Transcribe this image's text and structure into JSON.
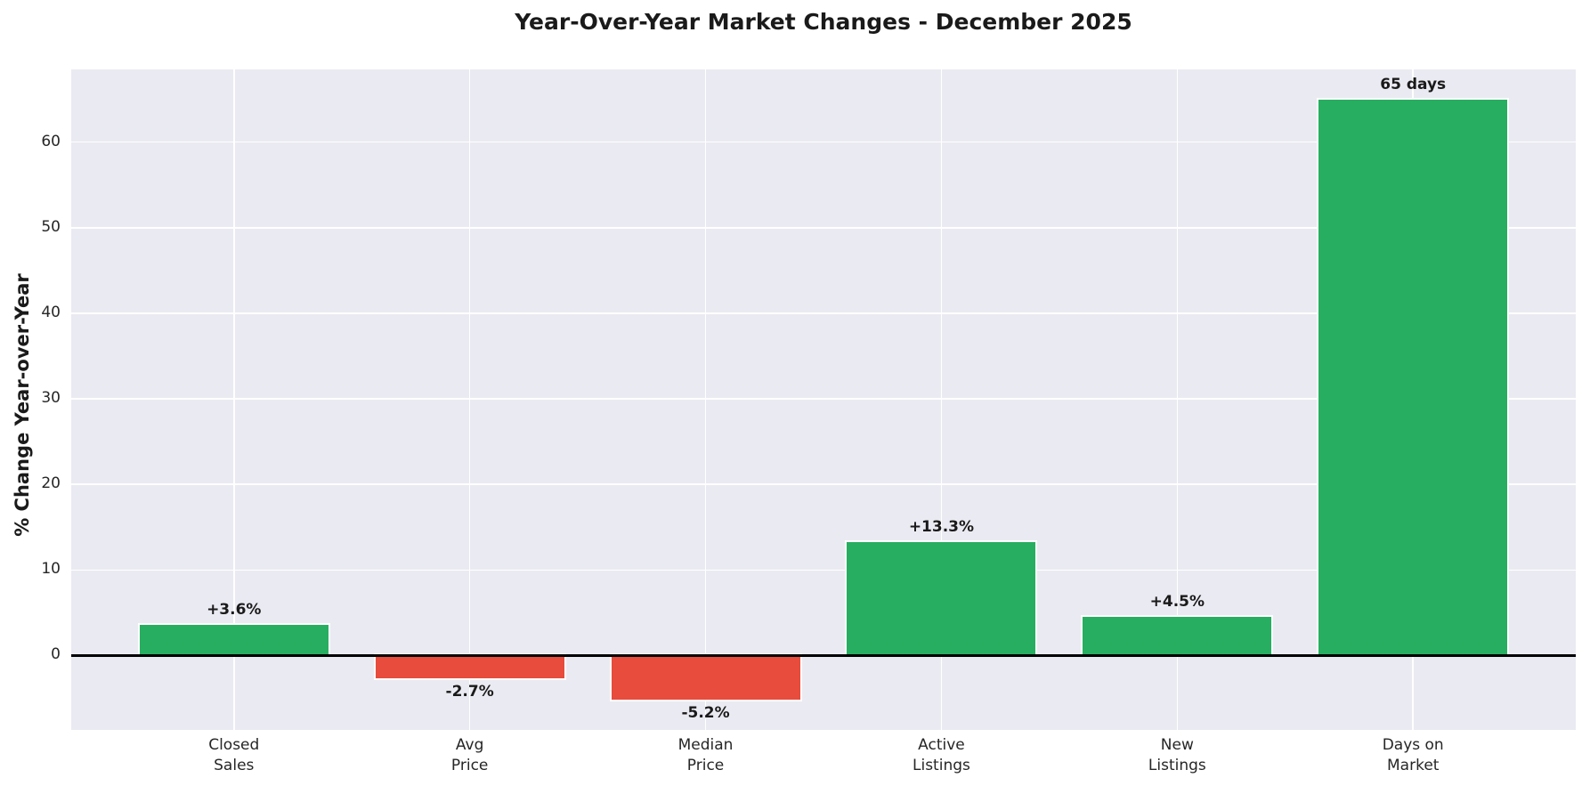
{
  "chart_data": {
    "type": "bar",
    "title": "Year-Over-Year Market Changes - December 2025",
    "ylabel": "% Change Year-over-Year",
    "xlabel": "",
    "categories": [
      "Closed\nSales",
      "Avg\nPrice",
      "Median\nPrice",
      "Active\nListings",
      "New\nListings",
      "Days on\nMarket"
    ],
    "values": [
      3.6,
      -2.7,
      -5.2,
      13.3,
      4.5,
      65
    ],
    "bar_labels": [
      "+3.6%",
      "-2.7%",
      "-5.2%",
      "+13.3%",
      "+4.5%",
      "65 days"
    ],
    "bar_colors": [
      "#27ae60",
      "#e74c3c",
      "#e74c3c",
      "#27ae60",
      "#27ae60",
      "#27ae60"
    ],
    "positive_color": "#27ae60",
    "negative_color": "#e74c3c",
    "bar_edge_color": "#ffffff",
    "bar_width_units": 0.8,
    "yticks": [
      0,
      10,
      20,
      30,
      40,
      50,
      60
    ],
    "ylim": [
      -8.7,
      68.5
    ],
    "xlim": [
      -0.69,
      5.69
    ],
    "grid": true,
    "grid_color": "#ffffff",
    "plot_bg_color": "#eaeaf2",
    "zero_line_color": "#000000",
    "legend": "none"
  }
}
